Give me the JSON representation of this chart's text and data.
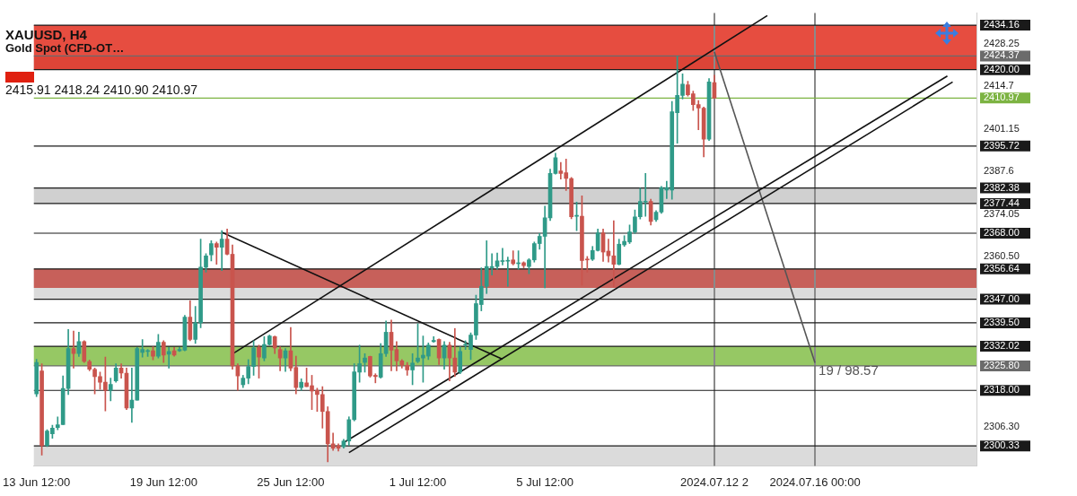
{
  "chart_data": {
    "type": "candlestick",
    "title": "XAUUSD, H4",
    "subtitle": "Gold Spot (CFD-OT…",
    "categories": [
      "13 Jun 12:00",
      null,
      null,
      null,
      null,
      null,
      null,
      null,
      null,
      null,
      null,
      null,
      null,
      null,
      null,
      null,
      null,
      null,
      null,
      null,
      null,
      null,
      null,
      null,
      "19 Jun 12:00",
      null,
      null,
      null,
      null,
      null,
      null,
      null,
      null,
      null,
      null,
      null,
      null,
      null,
      null,
      null,
      null,
      null,
      null,
      null,
      null,
      null,
      null,
      null,
      "25 Jun 12:00",
      null,
      null,
      null,
      null,
      null,
      null,
      null,
      null,
      null,
      null,
      null,
      null,
      null,
      null,
      null,
      null,
      null,
      null,
      null,
      null,
      null,
      null,
      null,
      "1 Jul 12:00",
      null,
      null,
      null,
      null,
      null,
      null,
      null,
      null,
      null,
      null,
      null,
      null,
      null,
      null,
      null,
      null,
      null,
      null,
      null,
      null,
      null,
      null,
      null,
      "5 Jul 12:00",
      null,
      null,
      null,
      null,
      null,
      null,
      null,
      null,
      null,
      null,
      null,
      null,
      null,
      null,
      null,
      null,
      null,
      null,
      null,
      null,
      null,
      null,
      null,
      null,
      null,
      null,
      null,
      null,
      null,
      null,
      null,
      "2024.07.12 2",
      null,
      null,
      null,
      null,
      null,
      null,
      null,
      null,
      null,
      null,
      null,
      null,
      null,
      null,
      null,
      null,
      null,
      null,
      "2024.07.16 00:00",
      null,
      null,
      null,
      null,
      null,
      null,
      null,
      null,
      null,
      null,
      null,
      null,
      null,
      null,
      null,
      null,
      null,
      null,
      null,
      null,
      null,
      null,
      null,
      null,
      null,
      null,
      null,
      null,
      null,
      null
    ],
    "ohlc": [
      [
        2316.9,
        2327.9,
        2316.0,
        2326.9
      ],
      [
        2324.2,
        2326.5,
        2297.4,
        2300.5
      ],
      [
        2300.5,
        2305.5,
        2300.1,
        2305.1
      ],
      [
        2304.2,
        2306.9,
        2302.8,
        2306.0
      ],
      [
        2306.2,
        2309.6,
        2305.5,
        2307.1
      ],
      [
        2307.1,
        2322.6,
        2307.1,
        2318.6
      ],
      [
        2318.6,
        2337.4,
        2316.7,
        2331.3
      ],
      [
        2331.3,
        2336.9,
        2325.1,
        2329.7
      ],
      [
        2329.7,
        2336.5,
        2328.8,
        2333.5
      ],
      [
        2333.5,
        2333.8,
        2326.9,
        2327.2
      ],
      [
        2327.2,
        2327.7,
        2324.2,
        2324.7
      ],
      [
        2324.7,
        2325.1,
        2316.9,
        2322.4
      ],
      [
        2322.4,
        2323.8,
        2318.3,
        2320.6
      ],
      [
        2320.6,
        2328.6,
        2311.5,
        2318.0
      ],
      [
        2318.0,
        2321.9,
        2314.7,
        2319.9
      ],
      [
        2321.0,
        2326.5,
        2320.6,
        2325.1
      ],
      [
        2325.1,
        2326.5,
        2321.9,
        2323.5
      ],
      [
        2323.5,
        2325.1,
        2311.9,
        2312.4
      ],
      [
        2312.4,
        2325.1,
        2307.8,
        2314.9
      ],
      [
        2314.9,
        2331.7,
        2314.9,
        2331.3
      ],
      [
        2330.1,
        2334.2,
        2328.6,
        2331.0
      ],
      [
        2330.4,
        2331.0,
        2328.8,
        2330.4
      ],
      [
        2330.6,
        2331.9,
        2327.7,
        2328.9
      ],
      [
        2328.9,
        2335.8,
        2328.3,
        2333.3
      ],
      [
        2333.3,
        2333.8,
        2326.9,
        2329.2
      ],
      [
        2329.5,
        2331.7,
        2325.1,
        2330.4
      ],
      [
        2330.6,
        2331.7,
        2328.9,
        2329.2
      ],
      [
        2330.6,
        2331.7,
        2330.4,
        2331.0
      ],
      [
        2330.8,
        2341.9,
        2330.6,
        2341.3
      ],
      [
        2341.3,
        2346.5,
        2333.8,
        2334.2
      ],
      [
        2334.2,
        2344.7,
        2332.9,
        2339.5
      ],
      [
        2339.5,
        2366.1,
        2337.9,
        2357.2
      ],
      [
        2357.2,
        2361.5,
        2355.6,
        2360.8
      ],
      [
        2361.1,
        2365.6,
        2359.2,
        2364.7
      ],
      [
        2364.7,
        2365.2,
        2358.1,
        2363.5
      ],
      [
        2363.5,
        2368.8,
        2356.1,
        2366.1
      ],
      [
        2366.1,
        2369.3,
        2361.1,
        2361.3
      ],
      [
        2361.3,
        2364.3,
        2324.7,
        2325.8
      ],
      [
        2325.8,
        2326.5,
        2318.0,
        2322.6
      ],
      [
        2319.8,
        2322.8,
        2318.9,
        2321.9
      ],
      [
        2321.9,
        2327.8,
        2320.1,
        2325.6
      ],
      [
        2325.6,
        2333.8,
        2322.8,
        2331.5
      ],
      [
        2331.7,
        2332.4,
        2321.9,
        2328.6
      ],
      [
        2328.3,
        2335.1,
        2327.4,
        2332.6
      ],
      [
        2332.6,
        2335.6,
        2332.4,
        2335.3
      ],
      [
        2335.1,
        2335.3,
        2329.7,
        2331.5
      ],
      [
        2331.0,
        2331.9,
        2324.2,
        2328.3
      ],
      [
        2328.3,
        2331.3,
        2324.0,
        2330.6
      ],
      [
        2330.6,
        2338.0,
        2324.2,
        2325.1
      ],
      [
        2325.3,
        2328.9,
        2316.9,
        2318.9
      ],
      [
        2318.9,
        2321.7,
        2318.0,
        2320.6
      ],
      [
        2320.4,
        2325.1,
        2319.2,
        2319.2
      ],
      [
        2319.5,
        2322.8,
        2311.9,
        2317.8
      ],
      [
        2318.0,
        2318.7,
        2311.3,
        2316.7
      ],
      [
        2316.7,
        2319.2,
        2306.0,
        2311.3
      ],
      [
        2311.3,
        2312.8,
        2295.3,
        2301.0
      ],
      [
        2301.0,
        2304.4,
        2298.9,
        2299.6
      ],
      [
        2300.4,
        2301.0,
        2298.7,
        2299.6
      ],
      [
        2300.1,
        2302.4,
        2299.6,
        2301.9
      ],
      [
        2301.9,
        2309.6,
        2300.5,
        2308.7
      ],
      [
        2308.7,
        2326.5,
        2308.3,
        2323.9
      ],
      [
        2323.8,
        2332.4,
        2320.6,
        2326.5
      ],
      [
        2326.9,
        2329.7,
        2323.8,
        2328.3
      ],
      [
        2328.8,
        2328.9,
        2322.2,
        2322.6
      ],
      [
        2322.8,
        2323.3,
        2320.4,
        2322.4
      ],
      [
        2322.2,
        2332.9,
        2321.9,
        2329.7
      ],
      [
        2329.7,
        2340.1,
        2328.8,
        2336.5
      ],
      [
        2336.5,
        2340.4,
        2324.2,
        2330.8
      ],
      [
        2331.0,
        2333.5,
        2324.2,
        2327.4
      ],
      [
        2327.4,
        2327.8,
        2325.1,
        2326.0
      ],
      [
        2326.0,
        2326.9,
        2322.8,
        2324.5
      ],
      [
        2324.5,
        2329.7,
        2319.8,
        2326.7
      ],
      [
        2327.2,
        2339.2,
        2326.8,
        2328.3
      ],
      [
        2328.3,
        2335.3,
        2320.6,
        2329.2
      ],
      [
        2328.9,
        2333.1,
        2327.8,
        2332.4
      ],
      [
        2333.5,
        2335.1,
        2333.3,
        2333.9
      ],
      [
        2334.2,
        2334.4,
        2326.2,
        2328.3
      ],
      [
        2328.3,
        2333.5,
        2324.7,
        2332.4
      ],
      [
        2332.4,
        2333.3,
        2321.0,
        2328.3
      ],
      [
        2328.3,
        2337.7,
        2322.4,
        2323.8
      ],
      [
        2323.8,
        2331.9,
        2323.3,
        2330.4
      ],
      [
        2332.4,
        2333.8,
        2331.0,
        2332.4
      ],
      [
        2331.0,
        2336.3,
        2327.8,
        2335.6
      ],
      [
        2335.6,
        2348.3,
        2334.2,
        2345.6
      ],
      [
        2345.3,
        2357.0,
        2343.3,
        2351.1
      ],
      [
        2351.1,
        2365.6,
        2348.8,
        2357.4
      ],
      [
        2357.0,
        2361.5,
        2354.7,
        2357.4
      ],
      [
        2357.4,
        2361.7,
        2356.5,
        2359.2
      ],
      [
        2359.0,
        2363.2,
        2357.9,
        2359.2
      ],
      [
        2359.1,
        2360.4,
        2351.1,
        2359.2
      ],
      [
        2359.5,
        2362.4,
        2357.9,
        2358.3
      ],
      [
        2358.3,
        2362.4,
        2356.5,
        2358.3
      ],
      [
        2358.6,
        2358.9,
        2357.0,
        2357.7
      ],
      [
        2357.4,
        2359.9,
        2355.1,
        2359.5
      ],
      [
        2359.5,
        2365.2,
        2358.8,
        2364.7
      ],
      [
        2364.7,
        2367.9,
        2362.9,
        2367.0
      ],
      [
        2367.0,
        2376.6,
        2350.6,
        2372.9
      ],
      [
        2372.9,
        2388.4,
        2372.0,
        2387.0
      ],
      [
        2387.0,
        2393.4,
        2386.8,
        2392.0
      ],
      [
        2387.8,
        2390.5,
        2385.2,
        2387.0
      ],
      [
        2387.2,
        2391.6,
        2381.6,
        2385.4
      ],
      [
        2385.4,
        2385.7,
        2372.6,
        2373.2
      ],
      [
        2373.4,
        2377.9,
        2368.8,
        2373.4
      ],
      [
        2373.4,
        2379.9,
        2351.5,
        2359.3
      ],
      [
        2359.7,
        2360.6,
        2355.6,
        2359.5
      ],
      [
        2359.7,
        2363.8,
        2359.3,
        2362.5
      ],
      [
        2362.5,
        2369.3,
        2362.3,
        2368.1
      ],
      [
        2368.1,
        2369.3,
        2359.0,
        2362.0
      ],
      [
        2362.3,
        2366.1,
        2358.8,
        2360.8
      ],
      [
        2360.8,
        2372.0,
        2350.8,
        2358.1
      ],
      [
        2358.1,
        2366.1,
        2357.9,
        2364.5
      ],
      [
        2364.3,
        2367.2,
        2363.8,
        2365.4
      ],
      [
        2365.2,
        2370.6,
        2364.7,
        2368.4
      ],
      [
        2368.4,
        2375.4,
        2367.9,
        2373.2
      ],
      [
        2373.2,
        2382.3,
        2372.5,
        2378.1
      ],
      [
        2377.9,
        2387.0,
        2373.4,
        2377.9
      ],
      [
        2378.1,
        2378.8,
        2370.6,
        2371.7
      ],
      [
        2372.3,
        2375.2,
        2371.7,
        2374.7
      ],
      [
        2374.7,
        2382.9,
        2374.3,
        2382.5
      ],
      [
        2381.7,
        2384.5,
        2379.0,
        2382.5
      ],
      [
        2381.7,
        2409.9,
        2378.8,
        2406.6
      ],
      [
        2406.3,
        2424.3,
        2396.6,
        2411.8
      ],
      [
        2411.8,
        2418.7,
        2410.7,
        2415.4
      ],
      [
        2415.2,
        2416.3,
        2411.6,
        2412.0
      ],
      [
        2412.3,
        2413.2,
        2407.0,
        2408.9
      ],
      [
        2408.9,
        2410.2,
        2400.9,
        2407.8
      ],
      [
        2407.8,
        2408.1,
        2392.3,
        2397.9
      ],
      [
        2397.9,
        2417.2,
        2397.5,
        2416.1
      ],
      [
        2415.91,
        2418.24,
        2410.9,
        2410.97
      ],
      null,
      null,
      null,
      null,
      null,
      null,
      null,
      null,
      null,
      null,
      null,
      null,
      null,
      null,
      null,
      null,
      null,
      null,
      null,
      null,
      null,
      null,
      null,
      null,
      null,
      null,
      null,
      null,
      null,
      null,
      null,
      null,
      null,
      null,
      null,
      null,
      null,
      null,
      null,
      null,
      null,
      null,
      null,
      null,
      null,
      null,
      null,
      null,
      null
    ],
    "series": [
      {
        "type": "line",
        "color": "#111111",
        "values": [
          null,
          null,
          null,
          null,
          null,
          null,
          null,
          null,
          null,
          null,
          null,
          null,
          null,
          null,
          null,
          null,
          null,
          null,
          null,
          null,
          null,
          null,
          null,
          null,
          null,
          null,
          null,
          null,
          null,
          null,
          null,
          null,
          null,
          null,
          null,
          null,
          null,
          2329.6,
          null,
          null,
          null,
          null,
          null,
          null,
          null,
          null,
          null,
          null,
          null,
          null,
          null,
          null,
          null,
          null,
          null,
          null,
          null,
          null,
          null,
          null,
          null,
          null,
          null,
          null,
          null,
          null,
          null,
          null,
          null,
          null,
          null,
          null,
          null,
          null,
          null,
          null,
          null,
          null,
          null,
          null,
          null,
          null,
          null,
          null,
          null,
          null,
          null,
          null,
          null,
          null,
          null,
          null,
          null,
          null,
          null,
          null,
          null,
          null,
          null,
          null,
          null,
          null,
          null,
          null,
          null,
          null,
          null,
          null,
          null,
          null,
          null,
          null,
          null,
          null,
          null,
          null,
          null,
          null,
          null,
          null,
          null,
          null,
          null,
          null,
          null,
          null,
          null,
          null,
          null,
          null,
          null,
          null,
          null,
          null,
          null,
          null,
          null,
          null,
          2437.2,
          null,
          null,
          null,
          null,
          null,
          null,
          null,
          null,
          null,
          null,
          null,
          null,
          null,
          null,
          null,
          null,
          null,
          null,
          null,
          null,
          null,
          null,
          null,
          null,
          null,
          null,
          null,
          null,
          null,
          null,
          null,
          null,
          null,
          null,
          null,
          null,
          null,
          null,
          null
        ]
      },
      {
        "type": "line",
        "color": "#111111",
        "values": [
          null,
          null,
          null,
          null,
          null,
          null,
          null,
          null,
          null,
          null,
          null,
          null,
          null,
          null,
          null,
          null,
          null,
          null,
          null,
          null,
          null,
          null,
          null,
          null,
          null,
          null,
          null,
          null,
          null,
          null,
          null,
          null,
          null,
          null,
          null,
          null,
          null,
          null,
          null,
          null,
          null,
          null,
          null,
          null,
          null,
          null,
          null,
          null,
          null,
          null,
          null,
          null,
          null,
          null,
          null,
          null,
          null,
          null,
          2301.4,
          null,
          null,
          null,
          null,
          null,
          null,
          null,
          null,
          null,
          null,
          null,
          null,
          null,
          null,
          null,
          null,
          null,
          null,
          null,
          null,
          null,
          null,
          null,
          null,
          null,
          null,
          null,
          null,
          null,
          null,
          null,
          null,
          null,
          null,
          null,
          null,
          null,
          null,
          null,
          null,
          null,
          null,
          null,
          null,
          null,
          null,
          null,
          null,
          null,
          null,
          null,
          null,
          null,
          null,
          null,
          null,
          null,
          null,
          null,
          null,
          null,
          null,
          null,
          null,
          null,
          null,
          null,
          null,
          null,
          null,
          null,
          null,
          null,
          null,
          null,
          null,
          null,
          null,
          null,
          null,
          null,
          null,
          null,
          null,
          null,
          null,
          null,
          null,
          null,
          null,
          null,
          null,
          null,
          null,
          null,
          null,
          null,
          null,
          null,
          null,
          null,
          null,
          null,
          null,
          null,
          null,
          null,
          null,
          null,
          null,
          null,
          null,
          null,
          2418.0,
          null,
          null,
          null,
          null,
          null
        ]
      },
      {
        "type": "line",
        "color": "#111111",
        "values": [
          null,
          null,
          null,
          null,
          null,
          null,
          null,
          null,
          null,
          null,
          null,
          null,
          null,
          null,
          null,
          null,
          null,
          null,
          null,
          null,
          null,
          null,
          null,
          null,
          null,
          null,
          null,
          null,
          null,
          null,
          null,
          null,
          null,
          null,
          null,
          null,
          null,
          null,
          null,
          null,
          null,
          null,
          null,
          null,
          null,
          null,
          null,
          null,
          null,
          null,
          null,
          null,
          null,
          null,
          null,
          null,
          null,
          null,
          null,
          2298.2,
          null,
          null,
          null,
          null,
          null,
          null,
          null,
          null,
          null,
          null,
          null,
          null,
          null,
          null,
          null,
          null,
          null,
          null,
          null,
          null,
          null,
          null,
          null,
          null,
          null,
          null,
          null,
          null,
          null,
          null,
          null,
          null,
          null,
          null,
          null,
          null,
          null,
          null,
          null,
          null,
          null,
          null,
          null,
          null,
          null,
          null,
          null,
          null,
          null,
          null,
          null,
          null,
          null,
          null,
          null,
          null,
          null,
          null,
          null,
          null,
          null,
          null,
          null,
          null,
          null,
          null,
          null,
          null,
          null,
          null,
          null,
          null,
          null,
          null,
          null,
          null,
          null,
          null,
          null,
          null,
          null,
          null,
          null,
          null,
          null,
          null,
          null,
          null,
          null,
          null,
          null,
          null,
          null,
          null,
          null,
          null,
          null,
          null,
          null,
          null,
          null,
          null,
          null,
          null,
          null,
          null,
          null,
          null,
          null,
          null,
          null,
          null,
          null,
          2416.1,
          null,
          null,
          null,
          null
        ]
      },
      {
        "type": "line",
        "color": "#111111",
        "values": [
          null,
          null,
          null,
          null,
          null,
          null,
          null,
          null,
          null,
          null,
          null,
          null,
          null,
          null,
          null,
          null,
          null,
          null,
          null,
          null,
          null,
          null,
          null,
          null,
          null,
          null,
          null,
          null,
          null,
          null,
          null,
          null,
          null,
          null,
          null,
          2368.3,
          null,
          null,
          null,
          null,
          null,
          null,
          null,
          null,
          null,
          null,
          null,
          null,
          null,
          null,
          null,
          null,
          null,
          null,
          null,
          null,
          null,
          null,
          null,
          null,
          null,
          null,
          null,
          null,
          null,
          null,
          null,
          null,
          null,
          null,
          null,
          null,
          null,
          null,
          null,
          null,
          null,
          null,
          null,
          null,
          null,
          null,
          null,
          null,
          null,
          null,
          null,
          null,
          2327.9,
          null,
          null,
          null,
          null,
          null,
          null,
          null,
          null,
          null,
          null,
          null,
          null,
          null,
          null,
          null,
          null,
          null,
          null,
          null,
          null,
          null,
          null,
          null,
          null,
          null,
          null,
          null,
          null,
          null,
          null,
          null,
          null,
          null,
          null,
          null,
          null,
          null,
          null,
          null,
          null,
          null,
          null,
          null,
          null,
          null,
          null,
          null,
          null,
          null,
          null,
          null,
          null,
          null,
          null,
          null,
          null,
          null,
          null,
          null,
          null,
          null,
          null,
          null,
          null,
          null,
          null,
          null,
          null,
          null,
          null,
          null,
          null,
          null,
          null,
          null,
          null,
          null,
          null,
          null,
          null,
          null,
          null,
          null,
          null,
          null,
          null,
          null,
          null,
          null
        ]
      },
      {
        "type": "line",
        "name": "19 / 98.57",
        "color": "#555555",
        "values": [
          null,
          null,
          null,
          null,
          null,
          null,
          null,
          null,
          null,
          null,
          null,
          null,
          null,
          null,
          null,
          null,
          null,
          null,
          null,
          null,
          null,
          null,
          null,
          null,
          null,
          null,
          null,
          null,
          null,
          null,
          null,
          null,
          null,
          null,
          null,
          null,
          null,
          null,
          null,
          null,
          null,
          null,
          null,
          null,
          null,
          null,
          null,
          null,
          null,
          null,
          null,
          null,
          null,
          null,
          null,
          null,
          null,
          null,
          null,
          null,
          null,
          null,
          null,
          null,
          null,
          null,
          null,
          null,
          null,
          null,
          null,
          null,
          null,
          null,
          null,
          null,
          null,
          null,
          null,
          null,
          null,
          null,
          null,
          null,
          null,
          null,
          null,
          null,
          null,
          null,
          null,
          null,
          null,
          null,
          null,
          null,
          null,
          null,
          null,
          null,
          null,
          null,
          null,
          null,
          null,
          null,
          null,
          null,
          null,
          null,
          null,
          null,
          null,
          null,
          null,
          null,
          null,
          null,
          null,
          null,
          null,
          null,
          null,
          null,
          null,
          null,
          null,
          null,
          2425.7,
          null,
          null,
          null,
          null,
          null,
          null,
          null,
          null,
          null,
          null,
          null,
          null,
          null,
          null,
          null,
          null,
          null,
          null,
          2326.8,
          null,
          null,
          null,
          null,
          null,
          null,
          null,
          null,
          null,
          null,
          null,
          null,
          null,
          null,
          null,
          null,
          null,
          null,
          null,
          null,
          null,
          null,
          null,
          null,
          null,
          null,
          null,
          null,
          null,
          null
        ]
      }
    ],
    "ylim": [
      2294,
      2438
    ],
    "yticks": [
      2428.25,
      2414.7,
      2401.15,
      2387.6,
      2374.05,
      {
        "value": 2360.5,
        "label": "2360.50"
      },
      {
        "value": 2306.3,
        "label": "2306.30"
      }
    ],
    "ref_lines": [
      {
        "axis": "y",
        "value": 2434.16,
        "label": "2434.16",
        "color": "#1a1a1a"
      },
      {
        "axis": "y",
        "value": 2424.37,
        "label": "2424.37",
        "color": "#6b6b6b"
      },
      {
        "axis": "y",
        "value": 2420.0,
        "label": "2420.00",
        "color": "#1a1a1a"
      },
      {
        "axis": "y",
        "value": 2410.97,
        "label": "2410.97",
        "color": "#7cb342"
      },
      {
        "axis": "y",
        "value": 2395.72,
        "label": "2395.72",
        "color": "#1a1a1a"
      },
      {
        "axis": "y",
        "value": 2382.38,
        "label": "2382.38",
        "color": "#1a1a1a"
      },
      {
        "axis": "y",
        "value": 2377.44,
        "label": "2377.44",
        "color": "#1a1a1a"
      },
      {
        "axis": "y",
        "value": 2368.0,
        "label": "2368.00",
        "color": "#1a1a1a"
      },
      {
        "axis": "y",
        "value": 2356.64,
        "label": "2356.64",
        "color": "#1a1a1a"
      },
      {
        "axis": "y",
        "value": 2347.0,
        "label": "2347.00",
        "color": "#1a1a1a"
      },
      {
        "axis": "y",
        "value": 2339.5,
        "label": "2339.50",
        "color": "#1a1a1a"
      },
      {
        "axis": "y",
        "value": 2332.02,
        "label": "2332.02",
        "color": "#1a1a1a"
      },
      {
        "axis": "y",
        "value": 2325.8,
        "label": "2325.80",
        "color": "#6b6b6b"
      },
      {
        "axis": "y",
        "value": 2318.0,
        "label": "2318.00",
        "color": "#1a1a1a"
      },
      {
        "axis": "y",
        "value": 2300.33,
        "label": "2300.33",
        "color": "#1a1a1a"
      },
      {
        "axis": "x",
        "value": "2024.07.12 2",
        "color": "#8a8a8a"
      },
      {
        "axis": "x",
        "value": "2024.07.16 00:00",
        "color": "#8a8a8a"
      }
    ],
    "bands": [
      {
        "axis": "y",
        "from": 2420.0,
        "to": 2424.37,
        "color": "#c4c4c4"
      },
      {
        "axis": "y",
        "from": 2377.44,
        "to": 2382.38,
        "color": "#c4c4c4"
      },
      {
        "axis": "y",
        "from": 2347.0,
        "to": 2356.64,
        "color": "#d2d2d2"
      },
      {
        "axis": "y",
        "from": 2294,
        "to": 2300.33,
        "color": "#d2d2d2"
      },
      {
        "axis": "y",
        "from": 2350.6,
        "to": 2356.64,
        "color": "#c2413a"
      },
      {
        "axis": "y",
        "from": 2420.0,
        "to": 2434.16,
        "color": "#e02010"
      },
      {
        "axis": "y",
        "from": 2325.8,
        "to": 2332.02,
        "color": "#7cba3d"
      }
    ],
    "annotations": [
      "2415.91 2418.24 2410.90 2410.97"
    ]
  }
}
